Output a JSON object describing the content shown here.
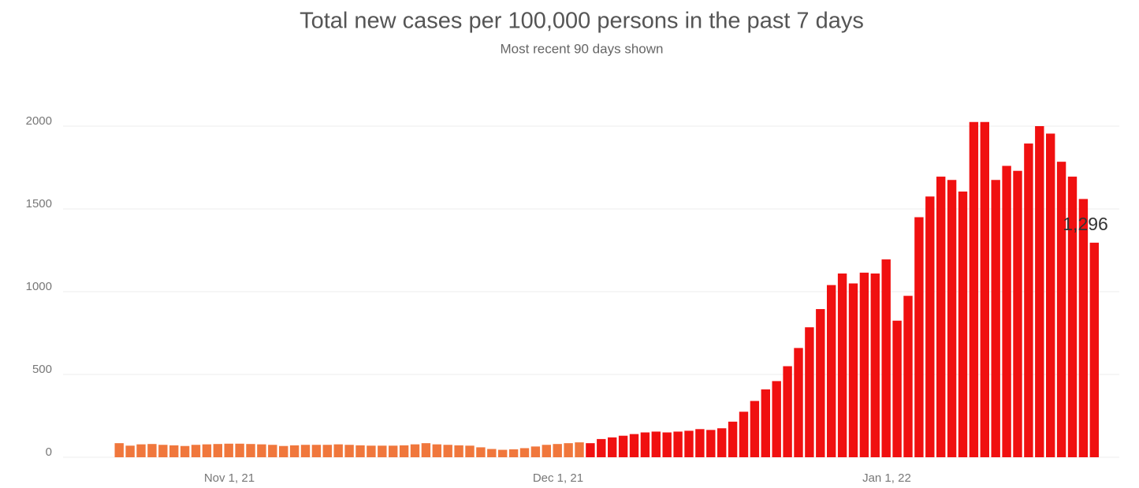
{
  "chart_data": {
    "type": "bar",
    "title": "Total new cases per 100,000 persons in the past 7 days",
    "subtitle": "Most recent 90 days shown",
    "categories": [
      null,
      null,
      null,
      null,
      null,
      null,
      null,
      null,
      null,
      null,
      "Nov 1, 21",
      null,
      null,
      null,
      null,
      null,
      null,
      null,
      null,
      null,
      null,
      null,
      null,
      null,
      null,
      null,
      null,
      null,
      null,
      null,
      null,
      null,
      null,
      null,
      null,
      null,
      null,
      null,
      null,
      null,
      "Dec 1, 21",
      null,
      null,
      null,
      null,
      null,
      null,
      null,
      null,
      null,
      null,
      null,
      null,
      null,
      null,
      null,
      null,
      null,
      null,
      null,
      null,
      null,
      null,
      null,
      null,
      null,
      null,
      null,
      null,
      null,
      "Jan 1, 22",
      null,
      null,
      null,
      null,
      null,
      null,
      null,
      null,
      null,
      null,
      null,
      null,
      null,
      null,
      null,
      null,
      null,
      null,
      null
    ],
    "series": [
      {
        "color": "#f0773c",
        "values": [
          85,
          70,
          78,
          80,
          75,
          72,
          68,
          75,
          78,
          80,
          82,
          82,
          80,
          78,
          75,
          68,
          72,
          75,
          75,
          75,
          78,
          75,
          72,
          70,
          70,
          70,
          72,
          78,
          85,
          78,
          75,
          72,
          70,
          60,
          50,
          45,
          48,
          55,
          65,
          75,
          80,
          85,
          90,
          null,
          null,
          null,
          null,
          null,
          null,
          null,
          null,
          null,
          null,
          null,
          null,
          null,
          null,
          null,
          null,
          null,
          null,
          null,
          null,
          null,
          null,
          null,
          null,
          null,
          null,
          null,
          null,
          null,
          null,
          null,
          null,
          null,
          null,
          null,
          null,
          null,
          null,
          null,
          null,
          null,
          null,
          null,
          null,
          null,
          null,
          null
        ]
      },
      {
        "color": "#f01010",
        "values": [
          null,
          null,
          null,
          null,
          null,
          null,
          null,
          null,
          null,
          null,
          null,
          null,
          null,
          null,
          null,
          null,
          null,
          null,
          null,
          null,
          null,
          null,
          null,
          null,
          null,
          null,
          null,
          null,
          null,
          null,
          null,
          null,
          null,
          null,
          null,
          null,
          null,
          null,
          null,
          null,
          null,
          null,
          null,
          85,
          110,
          120,
          130,
          140,
          150,
          155,
          150,
          155,
          160,
          170,
          165,
          175,
          215,
          275,
          340,
          410,
          460,
          550,
          660,
          785,
          895,
          1040,
          1110,
          1050,
          1115,
          1110,
          1195,
          825,
          975,
          1450,
          1575,
          1695,
          1675,
          1605,
          2025,
          2025,
          1675,
          1760,
          1730,
          1895,
          2000,
          1955,
          1785,
          1695,
          1560,
          1296
        ],
        "value_labels": [
          null,
          null,
          null,
          null,
          null,
          null,
          null,
          null,
          null,
          null,
          null,
          null,
          null,
          null,
          null,
          null,
          null,
          null,
          null,
          null,
          null,
          null,
          null,
          null,
          null,
          null,
          null,
          null,
          null,
          null,
          null,
          null,
          null,
          null,
          null,
          null,
          null,
          null,
          null,
          null,
          null,
          null,
          null,
          null,
          null,
          null,
          null,
          null,
          null,
          null,
          null,
          null,
          null,
          null,
          null,
          null,
          null,
          null,
          null,
          null,
          null,
          null,
          null,
          null,
          null,
          null,
          null,
          null,
          null,
          null,
          null,
          null,
          null,
          null,
          null,
          null,
          null,
          null,
          null,
          null,
          null,
          null,
          null,
          null,
          null,
          null,
          null,
          null,
          null,
          "1,296"
        ]
      }
    ],
    "ylim": [
      0,
      2100
    ],
    "yticks": [
      0,
      500,
      1000,
      1500,
      2000
    ],
    "grid": true
  }
}
